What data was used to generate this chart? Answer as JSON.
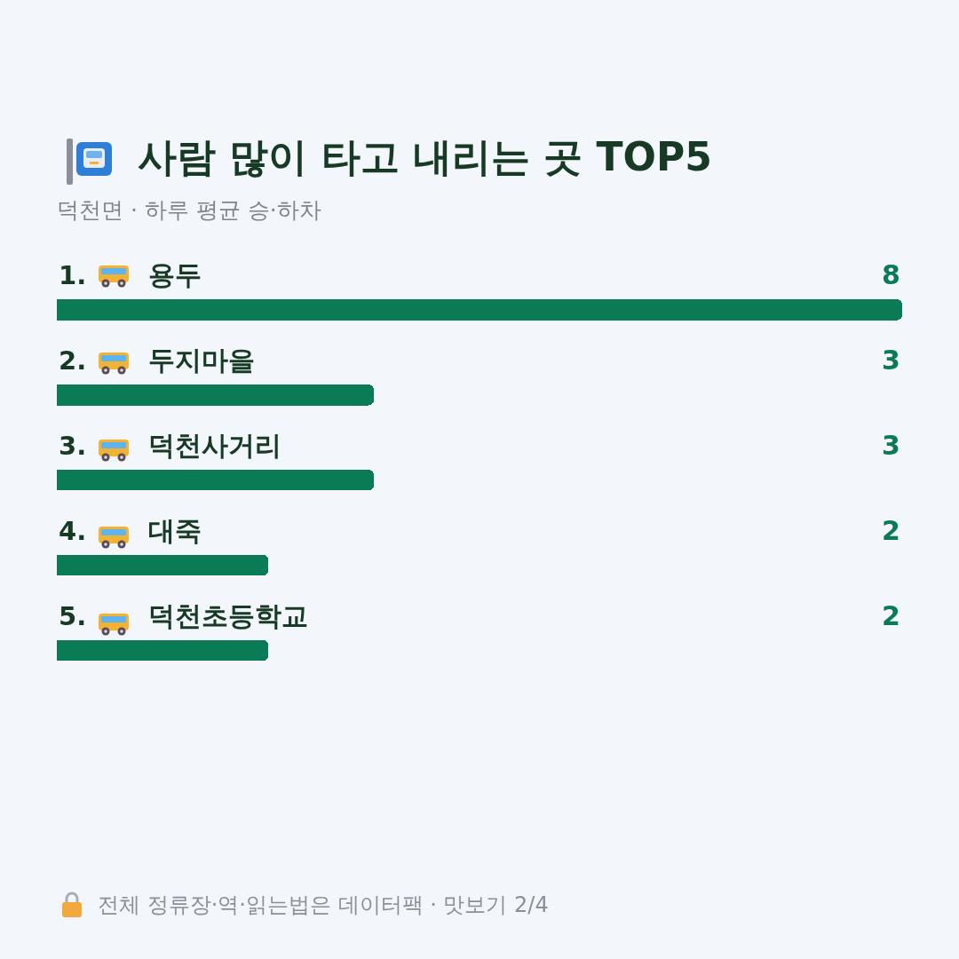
{
  "chart_data": {
    "type": "bar",
    "orientation": "horizontal",
    "title": "사람 많이 타고 내리는 곳 TOP5",
    "subtitle": "덕천면 · 하루 평균 승·하차",
    "categories": [
      "1. 용두",
      "2. 두지마을",
      "3. 덕천사거리",
      "4. 대죽",
      "5. 덕천초등학교"
    ],
    "values": [
      8,
      3,
      3,
      2,
      2
    ],
    "color": "#0b7b55",
    "xlim": [
      0,
      8
    ],
    "data_labels": true,
    "grid": false,
    "legend": false,
    "annotations": [
      "전체 정류장·역·읽는법은 데이터팩 · 맛보기 2/4"
    ]
  }
}
